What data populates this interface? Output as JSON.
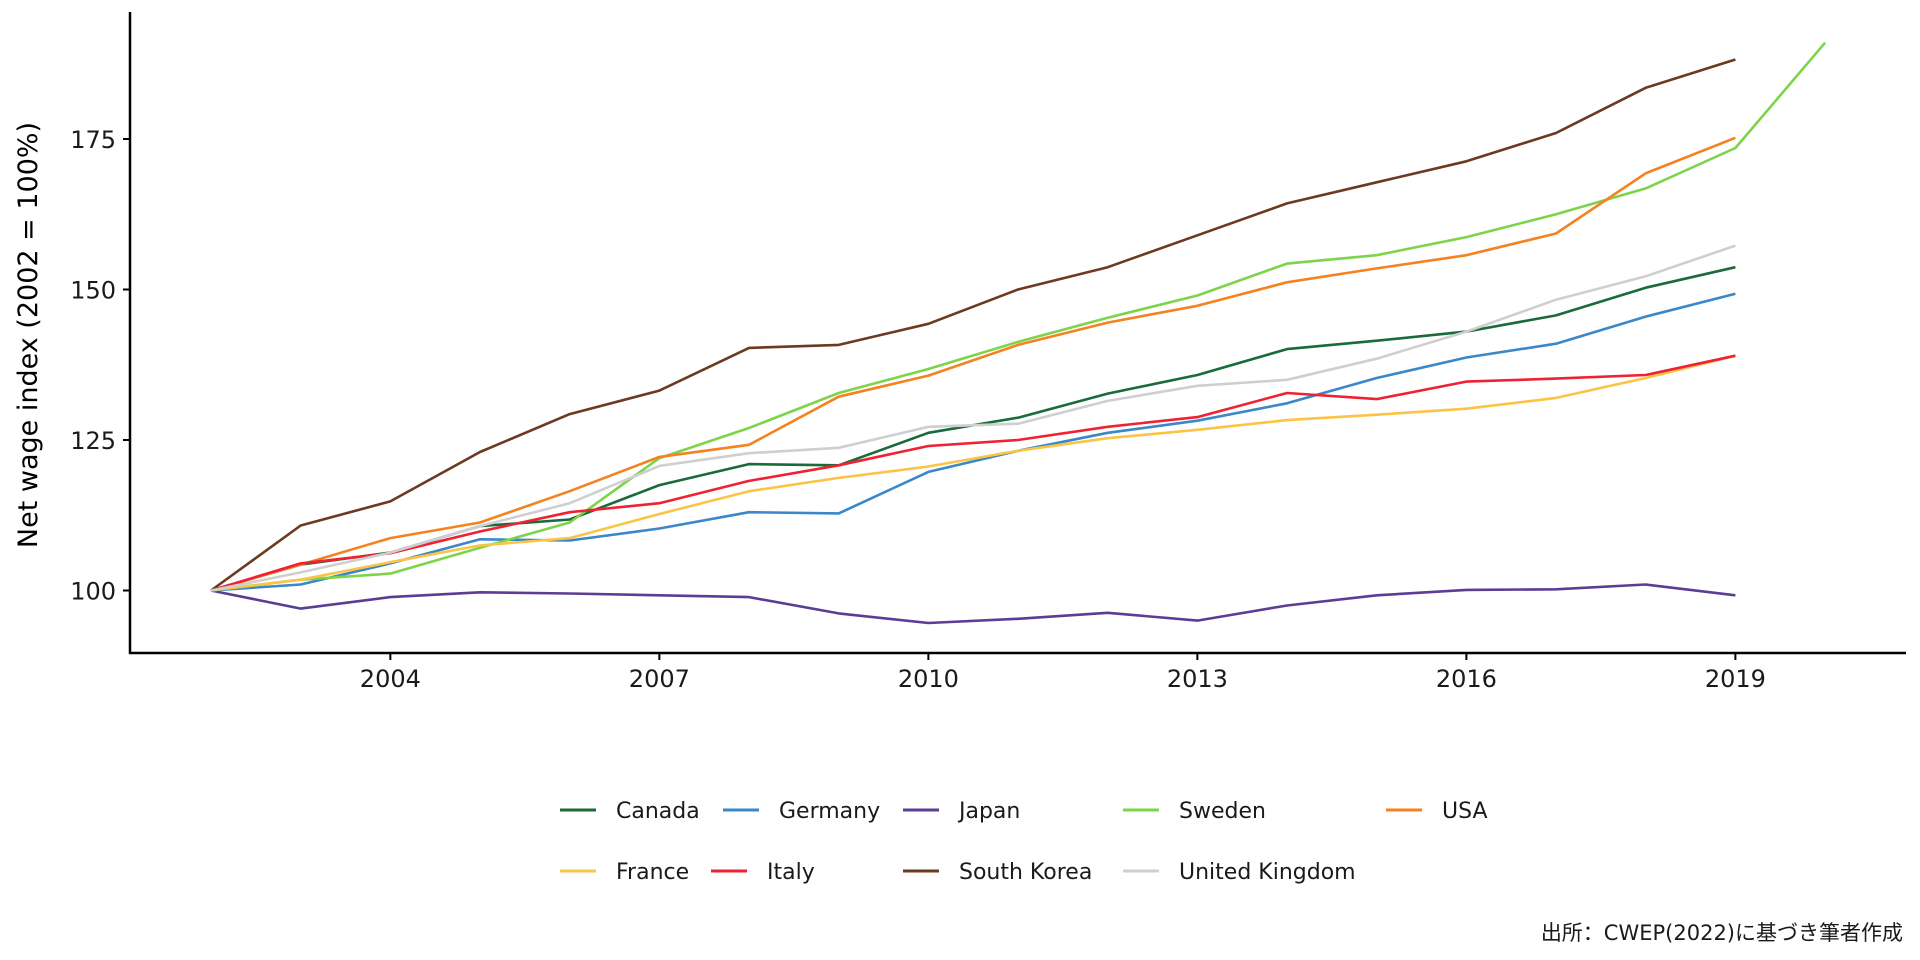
{
  "chart_data": {
    "type": "line",
    "title": "",
    "xlabel": "",
    "ylabel": "Net wage index (2002 = 100%)",
    "xlim": [
      2001.8,
      2021.0
    ],
    "ylim": [
      89.3,
      196.0
    ],
    "x_ticks": [
      2004,
      2007,
      2010,
      2013,
      2016,
      2019
    ],
    "x_tick_labels": [
      "2004",
      "2007",
      "2010",
      "2013",
      "2016",
      "2019"
    ],
    "y_ticks": [
      100,
      125,
      150,
      175
    ],
    "y_tick_labels": [
      "100",
      "125",
      "150",
      "175"
    ],
    "grid": false,
    "legend_position": "bottom",
    "series": [
      {
        "name": "Canada",
        "color": "#1a6b3a",
        "x": [
          2002,
          2003,
          2004,
          2005,
          2006,
          2007,
          2008,
          2009,
          2010,
          2011,
          2012,
          2013,
          2014,
          2015,
          2016,
          2017,
          2018,
          2019
        ],
        "values": [
          100,
          104.3,
          106.3,
          110.7,
          111.8,
          117.5,
          121.0,
          120.8,
          126.2,
          128.7,
          132.7,
          135.8,
          140.1,
          141.5,
          143.0,
          145.7,
          150.3,
          153.7
        ]
      },
      {
        "name": "Germany",
        "color": "#3a87c9",
        "x": [
          2002,
          2003,
          2004,
          2005,
          2006,
          2007,
          2008,
          2009,
          2010,
          2011,
          2012,
          2013,
          2014,
          2015,
          2016,
          2017,
          2018,
          2019
        ],
        "values": [
          100,
          101.0,
          104.5,
          108.5,
          108.3,
          110.3,
          113.0,
          112.8,
          119.7,
          123.2,
          126.2,
          128.2,
          131.1,
          135.3,
          138.7,
          141.0,
          145.5,
          149.3
        ]
      },
      {
        "name": "Japan",
        "color": "#5c3d94",
        "x": [
          2002,
          2003,
          2004,
          2005,
          2006,
          2007,
          2008,
          2009,
          2010,
          2011,
          2012,
          2013,
          2014,
          2015,
          2016,
          2017,
          2018,
          2019
        ],
        "values": [
          100,
          97.0,
          98.9,
          99.7,
          99.5,
          99.2,
          98.9,
          96.2,
          94.6,
          95.3,
          96.3,
          95.0,
          97.5,
          99.2,
          100.1,
          100.2,
          101.0,
          99.2
        ]
      },
      {
        "name": "Sweden",
        "color": "#7dd44a",
        "x": [
          2002,
          2003,
          2004,
          2005,
          2006,
          2007,
          2008,
          2009,
          2010,
          2011,
          2012,
          2013,
          2014,
          2015,
          2016,
          2017,
          2018,
          2019,
          2020
        ],
        "values": [
          100,
          101.8,
          102.8,
          107.1,
          111.3,
          122.0,
          127.0,
          132.8,
          136.8,
          141.3,
          145.3,
          149.0,
          154.3,
          155.7,
          158.7,
          162.5,
          166.8,
          173.5,
          191.0
        ]
      },
      {
        "name": "USA",
        "color": "#f58220",
        "x": [
          2002,
          2003,
          2004,
          2005,
          2006,
          2007,
          2008,
          2009,
          2010,
          2011,
          2012,
          2013,
          2014,
          2015,
          2016,
          2017,
          2018,
          2019
        ],
        "values": [
          100,
          104.3,
          108.7,
          111.3,
          116.5,
          122.2,
          124.2,
          132.2,
          135.7,
          140.8,
          144.5,
          147.3,
          151.2,
          153.5,
          155.7,
          159.3,
          169.3,
          175.2
        ]
      },
      {
        "name": "France",
        "color": "#fcc444",
        "x": [
          2002,
          2003,
          2004,
          2005,
          2006,
          2007,
          2008,
          2009,
          2010,
          2011,
          2012,
          2013,
          2014,
          2015,
          2016,
          2017,
          2018,
          2019
        ],
        "values": [
          100,
          101.8,
          104.7,
          107.5,
          108.7,
          112.7,
          116.5,
          118.7,
          120.6,
          123.2,
          125.3,
          126.7,
          128.3,
          129.2,
          130.2,
          132.0,
          135.3,
          139.0
        ]
      },
      {
        "name": "Italy",
        "color": "#ee2233",
        "x": [
          2002,
          2003,
          2004,
          2005,
          2006,
          2007,
          2008,
          2009,
          2010,
          2011,
          2012,
          2013,
          2014,
          2015,
          2016,
          2017,
          2018,
          2019
        ],
        "values": [
          100,
          104.5,
          106.2,
          109.8,
          113.0,
          114.5,
          118.2,
          120.8,
          124.0,
          125.0,
          127.2,
          128.8,
          132.8,
          131.8,
          134.7,
          135.2,
          135.8,
          139.0
        ]
      },
      {
        "name": "South Korea",
        "color": "#6b3a1f",
        "x": [
          2002,
          2003,
          2004,
          2005,
          2006,
          2007,
          2008,
          2009,
          2010,
          2011,
          2012,
          2013,
          2014,
          2015,
          2016,
          2017,
          2018,
          2019
        ],
        "values": [
          100,
          110.8,
          114.8,
          123.0,
          129.3,
          133.2,
          140.3,
          140.8,
          144.3,
          150.0,
          153.7,
          159.0,
          164.3,
          167.8,
          171.3,
          176.0,
          183.5,
          188.2
        ]
      },
      {
        "name": "United Kingdom",
        "color": "#cfcfcf",
        "x": [
          2002,
          2003,
          2004,
          2005,
          2006,
          2007,
          2008,
          2009,
          2010,
          2011,
          2012,
          2013,
          2014,
          2015,
          2016,
          2017,
          2018,
          2019
        ],
        "values": [
          100,
          103.0,
          106.3,
          110.7,
          114.5,
          120.7,
          122.8,
          123.7,
          127.2,
          127.7,
          131.5,
          134.0,
          135.0,
          138.5,
          143.0,
          148.3,
          152.2,
          157.3
        ]
      }
    ],
    "legend_rows": [
      [
        "Canada",
        "Germany",
        "Japan",
        "Sweden",
        "USA"
      ],
      [
        "France",
        "Italy",
        "South Korea",
        "United Kingdom"
      ]
    ],
    "caption": "出所：CWEP(2022)に基づき筆者作成"
  }
}
